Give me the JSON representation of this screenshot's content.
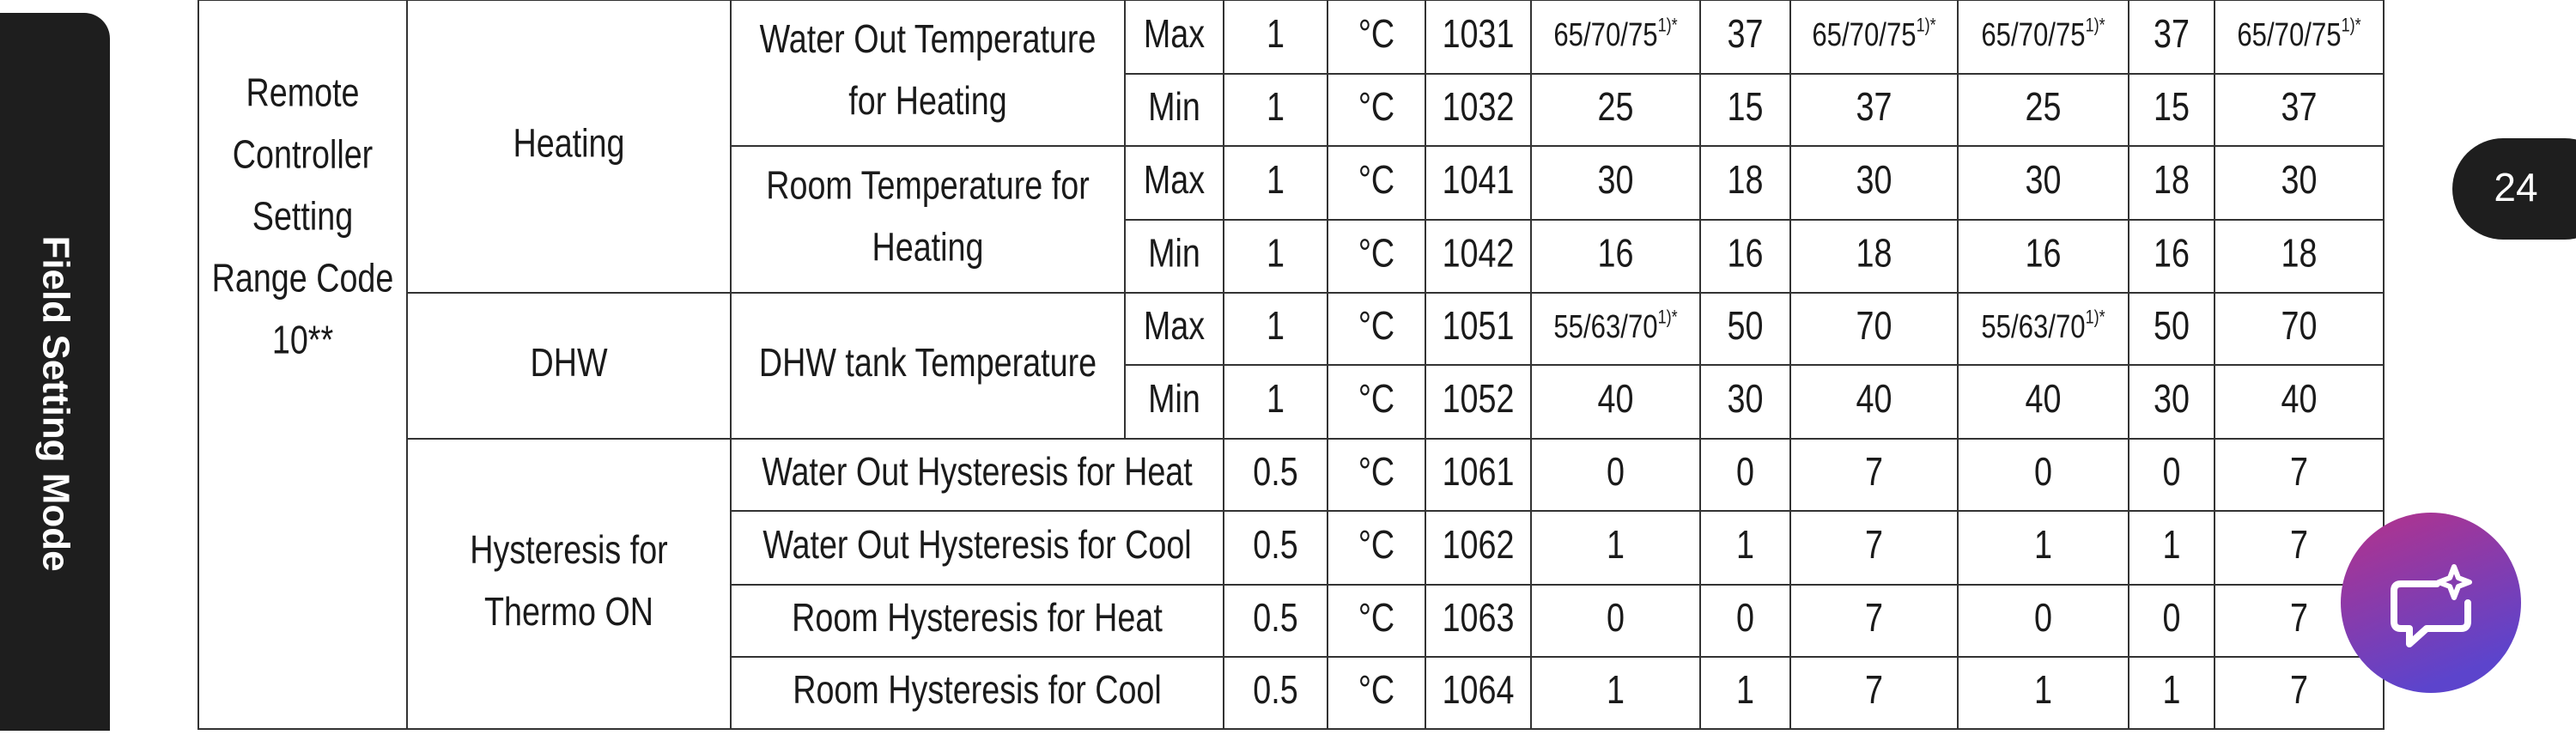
{
  "sidebar": "Field Setting Mode",
  "page_number": "24",
  "table": {
    "group": [
      "Remote",
      "Controller",
      "Setting",
      "Range Code",
      "10**"
    ],
    "sections": [
      {
        "name": [
          "Heating"
        ],
        "items": [
          {
            "name": [
              "Water Out Temperature",
              "for Heating"
            ],
            "rows": [
              {
                "limit": "Max",
                "step": "1",
                "unit": "°C",
                "code": "1031",
                "values": [
                  {
                    "text": "65/70/75",
                    "sup": "1)*"
                  },
                  "37",
                  {
                    "text": "65/70/75",
                    "sup": "1)*"
                  },
                  {
                    "text": "65/70/75",
                    "sup": "1)*"
                  },
                  "37",
                  {
                    "text": "65/70/75",
                    "sup": "1)*"
                  }
                ]
              },
              {
                "limit": "Min",
                "step": "1",
                "unit": "°C",
                "code": "1032",
                "values": [
                  "25",
                  "15",
                  "37",
                  "25",
                  "15",
                  "37"
                ]
              }
            ]
          },
          {
            "name": [
              "Room Temperature for",
              "Heating"
            ],
            "rows": [
              {
                "limit": "Max",
                "step": "1",
                "unit": "°C",
                "code": "1041",
                "values": [
                  "30",
                  "18",
                  "30",
                  "30",
                  "18",
                  "30"
                ]
              },
              {
                "limit": "Min",
                "step": "1",
                "unit": "°C",
                "code": "1042",
                "values": [
                  "16",
                  "16",
                  "18",
                  "16",
                  "16",
                  "18"
                ]
              }
            ]
          }
        ]
      },
      {
        "name": [
          "DHW"
        ],
        "items": [
          {
            "name": [
              "DHW tank Temperature"
            ],
            "rows": [
              {
                "limit": "Max",
                "step": "1",
                "unit": "°C",
                "code": "1051",
                "values": [
                  {
                    "text": "55/63/70",
                    "sup": "1)*"
                  },
                  "50",
                  "70",
                  {
                    "text": "55/63/70",
                    "sup": "1)*"
                  },
                  "50",
                  "70"
                ]
              },
              {
                "limit": "Min",
                "step": "1",
                "unit": "°C",
                "code": "1052",
                "values": [
                  "40",
                  "30",
                  "40",
                  "40",
                  "30",
                  "40"
                ]
              }
            ]
          }
        ]
      },
      {
        "name": [
          "Hysteresis for",
          "Thermo ON"
        ],
        "items": [
          {
            "name": [
              "Water Out Hysteresis for Heat"
            ],
            "step": "0.5",
            "unit": "°C",
            "code": "1061",
            "values": [
              "0",
              "0",
              "7",
              "0",
              "0",
              "7"
            ]
          },
          {
            "name": [
              "Water Out Hysteresis for Cool"
            ],
            "step": "0.5",
            "unit": "°C",
            "code": "1062",
            "values": [
              "1",
              "1",
              "7",
              "1",
              "1",
              "7"
            ]
          },
          {
            "name": [
              "Room Hysteresis for Heat"
            ],
            "step": "0.5",
            "unit": "°C",
            "code": "1063",
            "values": [
              "0",
              "0",
              "7",
              "0",
              "0",
              "7"
            ]
          },
          {
            "name": [
              "Room Hysteresis for Cool"
            ],
            "step": "0.5",
            "unit": "°C",
            "code": "1064",
            "values": [
              "1",
              "1",
              "7",
              "1",
              "1",
              "7"
            ]
          }
        ]
      }
    ]
  }
}
